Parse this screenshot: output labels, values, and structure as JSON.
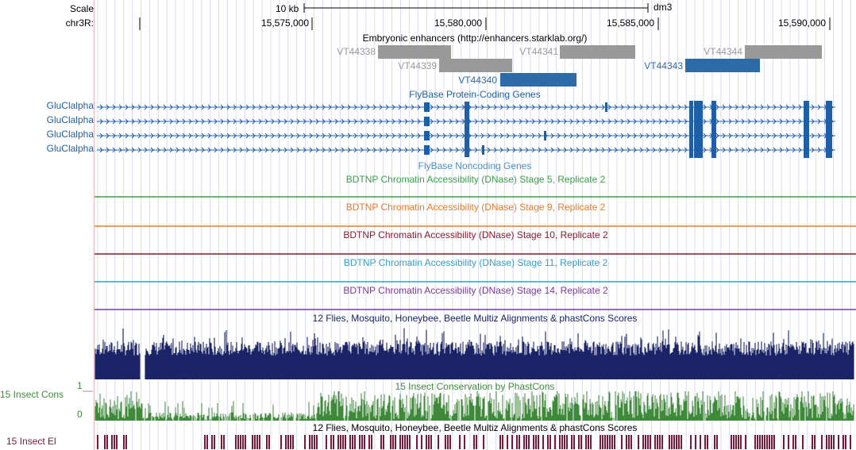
{
  "header": {
    "scale_label": "Scale",
    "scale_value": "10 kb",
    "assembly": "dm3",
    "chrom_label": "chr3R:",
    "positions": [
      "15,575,000",
      "15,580,000",
      "15,585,000",
      "15,590,000"
    ]
  },
  "tracks": {
    "enhancers": {
      "title": "Embryonic enhancers (http://enhancers.starklab.org/)",
      "items": [
        {
          "name": "VT44338",
          "color": "#999999"
        },
        {
          "name": "VT44339",
          "color": "#999999"
        },
        {
          "name": "VT44340",
          "color": "#2c6aa8"
        },
        {
          "name": "VT44341",
          "color": "#999999"
        },
        {
          "name": "VT44343",
          "color": "#2c6aa8"
        },
        {
          "name": "VT44344",
          "color": "#999999"
        }
      ]
    },
    "protein_coding": {
      "title": "FlyBase Protein-Coding Genes",
      "color": "#1f5fa8",
      "genes": [
        "GluClalpha",
        "GluClalpha",
        "GluClalpha",
        "GluClalpha"
      ]
    },
    "noncoding": {
      "title": "FlyBase Noncoding Genes",
      "color": "#4a90c8"
    },
    "dnase": [
      {
        "title": "BDTNP Chromatin Accessibility (DNase) Stage 5, Replicate 2",
        "color": "#3aa048"
      },
      {
        "title": "BDTNP Chromatin Accessibility (DNase) Stage 9, Replicate 2",
        "color": "#ec7a24"
      },
      {
        "title": "BDTNP Chromatin Accessibility (DNase) Stage 10, Replicate 2",
        "color": "#8b1a2a"
      },
      {
        "title": "BDTNP Chromatin Accessibility (DNase) Stage 11, Replicate 2",
        "color": "#3a9ec8"
      },
      {
        "title": "BDTNP Chromatin Accessibility (DNase) Stage 14, Replicate 2",
        "color": "#7a3a9a"
      }
    ],
    "multiz": {
      "title": "12 Flies, Mosquito, Honeybee, Beetle Multiz Alignments & phastCons Scores",
      "color": "#1a2466"
    },
    "insect_cons": {
      "title": "15 Insect Conservation by PhastCons",
      "side_label": "15 Insect Cons",
      "max_label": "1",
      "min_label": "0",
      "color": "#3f8a3a"
    },
    "insect_el": {
      "title": "12 Flies, Mosquito, Honeybee, Beetle Multiz Alignments & phastCons Scores",
      "side_label": "15 Insect El",
      "color": "#7a1a3a"
    }
  }
}
